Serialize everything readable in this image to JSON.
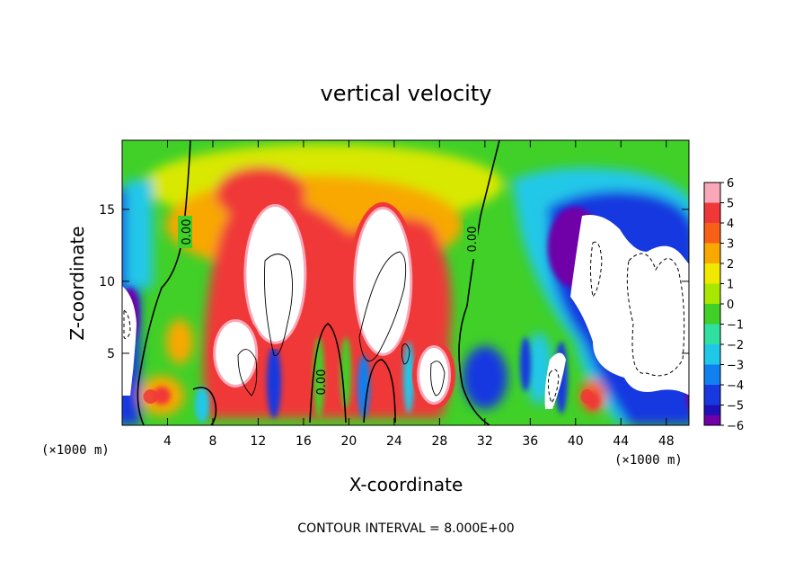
{
  "chart_data": {
    "type": "heatmap",
    "title": "vertical velocity",
    "xlabel": "X-coordinate",
    "ylabel": "Z-coordinate",
    "x_unit": "(×1000 m)",
    "z_unit": "(×1000 m)",
    "xlim": [
      0,
      50
    ],
    "ylim": [
      0,
      19.8
    ],
    "xticks": [
      4,
      8,
      12,
      16,
      20,
      24,
      28,
      32,
      36,
      40,
      44,
      48
    ],
    "yticks": [
      5,
      10,
      15
    ],
    "colorbar": {
      "levels": [
        6,
        5,
        4,
        3,
        2,
        1,
        0,
        -1,
        -2,
        -3,
        -4,
        -5,
        -6
      ],
      "labels": [
        "6",
        "5",
        "4",
        "3",
        "2",
        "1",
        "0",
        "−1",
        "−2",
        "−3",
        "−4",
        "−5",
        "−6"
      ],
      "colors": [
        "#f8a8b8",
        "#f03838",
        "#f86018",
        "#f8a800",
        "#f0e800",
        "#a8e800",
        "#40d028",
        "#30e0a0",
        "#20c8e8",
        "#1080f0",
        "#1838e0",
        "#2010b8",
        "#7000a8"
      ]
    },
    "contour_interval_text": "CONTOUR INTERVAL = 8.000E+00",
    "contour_labels": [
      "0.00",
      "0.00",
      "0.00"
    ],
    "background_color": "#40d028",
    "updraft_cells": [
      {
        "x": 13.5,
        "z": 10.5,
        "peak": 6
      },
      {
        "x": 23,
        "z": 10,
        "peak": 6
      },
      {
        "x": 10,
        "z": 5,
        "peak": 6
      },
      {
        "x": 27.5,
        "z": 3.5,
        "peak": 6
      },
      {
        "x": 11.5,
        "z": 16,
        "peak": 4
      },
      {
        "x": 2.5,
        "z": 2,
        "peak": 4
      },
      {
        "x": 41,
        "z": 2,
        "peak": 4
      }
    ],
    "downdraft_regions": [
      {
        "x": 45.5,
        "z": 8,
        "peak": -6
      },
      {
        "x": 1,
        "z": 8,
        "peak": -6
      },
      {
        "x": 39,
        "z": 3,
        "peak": -6
      }
    ]
  }
}
